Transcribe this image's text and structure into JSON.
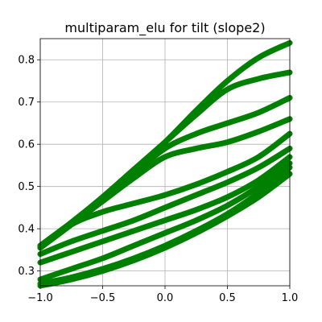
{
  "chart_data": {
    "type": "line",
    "title": "multiparam_elu for tilt (slope2)",
    "xlabel": "",
    "ylabel": "",
    "xlim": [
      -1.0,
      1.0
    ],
    "ylim": [
      0.265,
      0.85
    ],
    "xticks": [
      -1.0,
      -0.5,
      0.0,
      0.5,
      1.0
    ],
    "xtick_labels": [
      "−1.0",
      "−0.5",
      "0.0",
      "0.5",
      "1.0"
    ],
    "yticks": [
      0.3,
      0.4,
      0.5,
      0.6,
      0.7,
      0.8
    ],
    "ytick_labels": [
      "0.3",
      "0.4",
      "0.5",
      "0.6",
      "0.7",
      "0.8"
    ],
    "grid": true,
    "legend": false,
    "color": "#008000",
    "x": [
      -1.0,
      -0.75,
      -0.5,
      -0.25,
      0.0,
      0.25,
      0.5,
      0.75,
      1.0
    ],
    "series": [
      {
        "values": [
          0.36,
          0.415,
          0.475,
          0.54,
          0.605,
          0.68,
          0.75,
          0.805,
          0.84
        ]
      },
      {
        "values": [
          0.36,
          0.415,
          0.475,
          0.54,
          0.605,
          0.67,
          0.73,
          0.755,
          0.77
        ]
      },
      {
        "values": [
          0.355,
          0.41,
          0.47,
          0.53,
          0.59,
          0.625,
          0.65,
          0.675,
          0.71
        ]
      },
      {
        "values": [
          0.355,
          0.41,
          0.465,
          0.52,
          0.57,
          0.59,
          0.605,
          0.63,
          0.66
        ]
      },
      {
        "values": [
          0.36,
          0.41,
          0.44,
          0.46,
          0.48,
          0.505,
          0.535,
          0.57,
          0.625
        ]
      },
      {
        "values": [
          0.34,
          0.37,
          0.395,
          0.42,
          0.45,
          0.48,
          0.51,
          0.545,
          0.59
        ]
      },
      {
        "values": [
          0.32,
          0.345,
          0.37,
          0.395,
          0.42,
          0.445,
          0.475,
          0.515,
          0.57
        ]
      },
      {
        "values": [
          0.28,
          0.305,
          0.33,
          0.36,
          0.39,
          0.42,
          0.455,
          0.5,
          0.555
        ]
      },
      {
        "values": [
          0.27,
          0.285,
          0.305,
          0.33,
          0.36,
          0.395,
          0.435,
          0.485,
          0.545
        ]
      },
      {
        "values": [
          0.265,
          0.28,
          0.3,
          0.325,
          0.355,
          0.39,
          0.43,
          0.475,
          0.53
        ]
      }
    ]
  }
}
